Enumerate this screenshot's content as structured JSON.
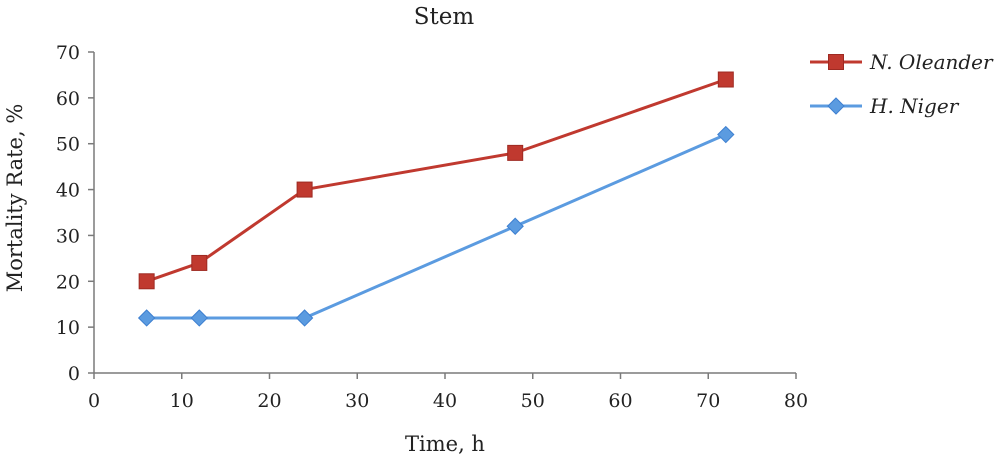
{
  "chart_data": {
    "type": "line",
    "title": "Stem",
    "xlabel": "Time, h",
    "ylabel": "Mortality Rate, %",
    "xlim": [
      0,
      80
    ],
    "ylim": [
      0,
      70
    ],
    "x_ticks": [
      0,
      10,
      20,
      30,
      40,
      50,
      60,
      70,
      80
    ],
    "y_ticks": [
      0,
      10,
      20,
      30,
      40,
      50,
      60,
      70
    ],
    "grid": false,
    "legend_position": "right",
    "series": [
      {
        "name": "N. Oleander",
        "color": "#C0392F",
        "marker": "square",
        "x": [
          6,
          12,
          24,
          48,
          72
        ],
        "y": [
          20,
          24,
          40,
          48,
          64
        ]
      },
      {
        "name": "H. Niger",
        "color": "#5B9BE0",
        "marker": "diamond",
        "x": [
          6,
          12,
          24,
          48,
          72
        ],
        "y": [
          12,
          12,
          12,
          32,
          52
        ]
      }
    ]
  }
}
